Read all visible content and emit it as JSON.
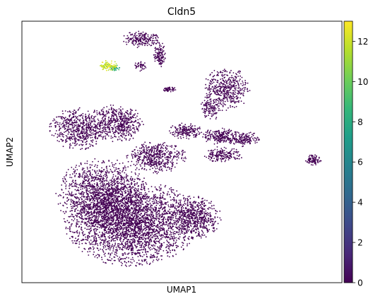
{
  "chart_data": {
    "type": "scatter",
    "title": "Cldn5",
    "xlabel": "UMAP1",
    "ylabel": "UMAP2",
    "x_ticks": false,
    "y_ticks": false,
    "xlim": [
      0,
      1
    ],
    "ylim": [
      0,
      1
    ],
    "colorbar": {
      "label": "",
      "min": 0,
      "max": 13,
      "ticks": [
        "0",
        "2",
        "4",
        "6",
        "8",
        "10",
        "12"
      ],
      "colormap": "viridis",
      "colors": [
        "#440154",
        "#482878",
        "#3e4989",
        "#31688e",
        "#26828e",
        "#1f9e89",
        "#35b779",
        "#6ece58",
        "#b5de2b",
        "#fde725"
      ]
    },
    "point_color_low": "#440154",
    "clusters": [
      {
        "name": "",
        "cx": 0.34,
        "cy": 0.23,
        "rx": 0.2,
        "ry": 0.16,
        "n": 3000,
        "value": 0
      },
      {
        "name": "",
        "cx": 0.25,
        "cy": 0.34,
        "rx": 0.14,
        "ry": 0.13,
        "n": 1300,
        "value": 0
      },
      {
        "name": "",
        "cx": 0.54,
        "cy": 0.25,
        "rx": 0.08,
        "ry": 0.08,
        "n": 600,
        "value": 0
      },
      {
        "name": "",
        "cx": 0.18,
        "cy": 0.59,
        "rx": 0.09,
        "ry": 0.08,
        "n": 600,
        "value": 0
      },
      {
        "name": "",
        "cx": 0.3,
        "cy": 0.61,
        "rx": 0.08,
        "ry": 0.07,
        "n": 500,
        "value": 0
      },
      {
        "name": "",
        "cx": 0.42,
        "cy": 0.48,
        "rx": 0.09,
        "ry": 0.06,
        "n": 500,
        "value": 0
      },
      {
        "name": "",
        "cx": 0.51,
        "cy": 0.58,
        "rx": 0.05,
        "ry": 0.03,
        "n": 180,
        "value": 0
      },
      {
        "name": "",
        "cx": 0.62,
        "cy": 0.56,
        "rx": 0.06,
        "ry": 0.03,
        "n": 220,
        "value": 0
      },
      {
        "name": "",
        "cx": 0.63,
        "cy": 0.49,
        "rx": 0.06,
        "ry": 0.03,
        "n": 180,
        "value": 0
      },
      {
        "name": "",
        "cx": 0.69,
        "cy": 0.55,
        "rx": 0.05,
        "ry": 0.03,
        "n": 160,
        "value": 0
      },
      {
        "name": "",
        "cx": 0.64,
        "cy": 0.74,
        "rx": 0.07,
        "ry": 0.08,
        "n": 450,
        "value": 0
      },
      {
        "name": "",
        "cx": 0.59,
        "cy": 0.67,
        "rx": 0.03,
        "ry": 0.05,
        "n": 120,
        "value": 0
      },
      {
        "name": "",
        "cx": 0.37,
        "cy": 0.93,
        "rx": 0.06,
        "ry": 0.03,
        "n": 200,
        "value": 0
      },
      {
        "name": "",
        "cx": 0.43,
        "cy": 0.87,
        "rx": 0.02,
        "ry": 0.05,
        "n": 120,
        "value": 0
      },
      {
        "name": "",
        "cx": 0.37,
        "cy": 0.83,
        "rx": 0.02,
        "ry": 0.02,
        "n": 40,
        "value": 0
      },
      {
        "name": "",
        "cx": 0.46,
        "cy": 0.74,
        "rx": 0.02,
        "ry": 0.01,
        "n": 50,
        "value": 0
      },
      {
        "name": "",
        "cx": 0.91,
        "cy": 0.47,
        "rx": 0.025,
        "ry": 0.02,
        "n": 90,
        "value": 0
      },
      {
        "name": "",
        "cx": 0.27,
        "cy": 0.83,
        "rx": 0.03,
        "ry": 0.02,
        "n": 100,
        "value": 12
      },
      {
        "name": "",
        "cx": 0.29,
        "cy": 0.82,
        "rx": 0.015,
        "ry": 0.012,
        "n": 40,
        "value": 8
      }
    ]
  }
}
